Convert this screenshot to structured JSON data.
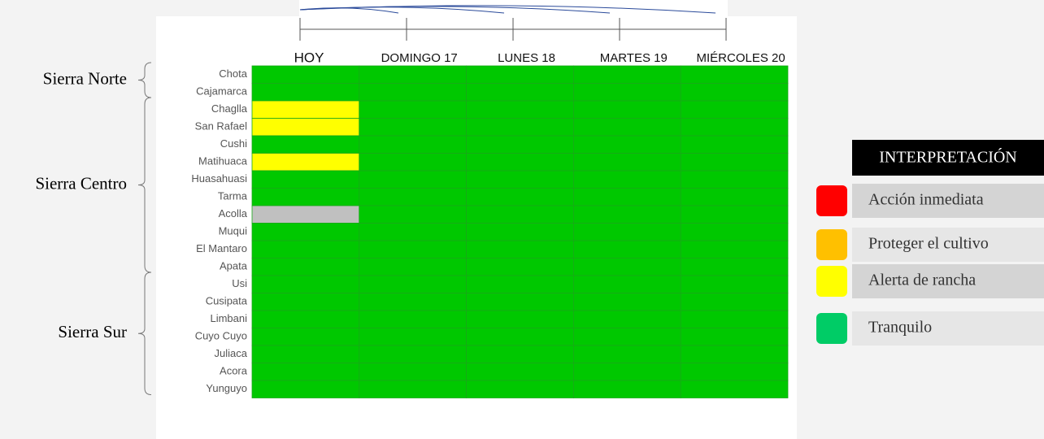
{
  "days": [
    "HOY",
    "DOMINGO  17",
    "LUNES  18",
    "MARTES  19",
    "MIÉRCOLES  20"
  ],
  "regions": [
    {
      "name": "Sierra Norte",
      "places": [
        {
          "name": "Chota",
          "cells": [
            "Tranquilo",
            "Tranquilo",
            "Tranquilo",
            "Tranquilo",
            "Tranquilo"
          ]
        },
        {
          "name": "Cajamarca",
          "cells": [
            "Tranquilo",
            "Tranquilo",
            "Tranquilo",
            "Tranquilo",
            "Tranquilo"
          ]
        }
      ]
    },
    {
      "name": "Sierra Centro",
      "places": [
        {
          "name": "Chaglla",
          "cells": [
            "Alerta de rancha",
            "Tranquilo",
            "Tranquilo",
            "Tranquilo",
            "Tranquilo"
          ]
        },
        {
          "name": "San Rafael",
          "cells": [
            "Alerta de rancha",
            "Tranquilo",
            "Tranquilo",
            "Tranquilo",
            "Tranquilo"
          ]
        },
        {
          "name": "Cushi",
          "cells": [
            "Tranquilo",
            "Tranquilo",
            "Tranquilo",
            "Tranquilo",
            "Tranquilo"
          ]
        },
        {
          "name": "Matihuaca",
          "cells": [
            "Alerta de rancha",
            "Tranquilo",
            "Tranquilo",
            "Tranquilo",
            "Tranquilo"
          ]
        },
        {
          "name": "Huasahuasi",
          "cells": [
            "Tranquilo",
            "Tranquilo",
            "Tranquilo",
            "Tranquilo",
            "Tranquilo"
          ]
        },
        {
          "name": "Tarma",
          "cells": [
            "Tranquilo",
            "Tranquilo",
            "Tranquilo",
            "Tranquilo",
            "Tranquilo"
          ]
        },
        {
          "name": "Acolla",
          "cells": [
            null,
            "Tranquilo",
            "Tranquilo",
            "Tranquilo",
            "Tranquilo"
          ]
        },
        {
          "name": "Muqui",
          "cells": [
            "Tranquilo",
            "Tranquilo",
            "Tranquilo",
            "Tranquilo",
            "Tranquilo"
          ]
        },
        {
          "name": "El Mantaro",
          "cells": [
            "Tranquilo",
            "Tranquilo",
            "Tranquilo",
            "Tranquilo",
            "Tranquilo"
          ]
        },
        {
          "name": "Apata",
          "cells": [
            "Tranquilo",
            "Tranquilo",
            "Tranquilo",
            "Tranquilo",
            "Tranquilo"
          ]
        }
      ]
    },
    {
      "name": "Sierra Sur",
      "places": [
        {
          "name": "Usi",
          "cells": [
            "Tranquilo",
            "Tranquilo",
            "Tranquilo",
            "Tranquilo",
            "Tranquilo"
          ]
        },
        {
          "name": "Cusipata",
          "cells": [
            "Tranquilo",
            "Tranquilo",
            "Tranquilo",
            "Tranquilo",
            "Tranquilo"
          ]
        },
        {
          "name": "Limbani",
          "cells": [
            "Tranquilo",
            "Tranquilo",
            "Tranquilo",
            "Tranquilo",
            "Tranquilo"
          ]
        },
        {
          "name": "Cuyo Cuyo",
          "cells": [
            "Tranquilo",
            "Tranquilo",
            "Tranquilo",
            "Tranquilo",
            "Tranquilo"
          ]
        },
        {
          "name": "Juliaca",
          "cells": [
            "Tranquilo",
            "Tranquilo",
            "Tranquilo",
            "Tranquilo",
            "Tranquilo"
          ]
        },
        {
          "name": "Acora",
          "cells": [
            "Tranquilo",
            "Tranquilo",
            "Tranquilo",
            "Tranquilo",
            "Tranquilo"
          ]
        },
        {
          "name": "Yunguyo",
          "cells": [
            "Tranquilo",
            "Tranquilo",
            "Tranquilo",
            "Tranquilo",
            "Tranquilo"
          ]
        }
      ]
    }
  ],
  "legend": {
    "title": "INTERPRETACIÓN",
    "items": [
      {
        "label": "Acción inmediata",
        "color": "#ff0000",
        "cell_color": "#ff0000"
      },
      {
        "label": "Proteger el cultivo",
        "color": "#ffc000",
        "cell_color": "#ffc000"
      },
      {
        "label": "Alerta de rancha",
        "color": "#ffff00",
        "cell_color": "#ffff00"
      },
      {
        "label": "Tranquilo",
        "color": "#00cc66",
        "cell_color": "#00c800"
      }
    ]
  }
}
